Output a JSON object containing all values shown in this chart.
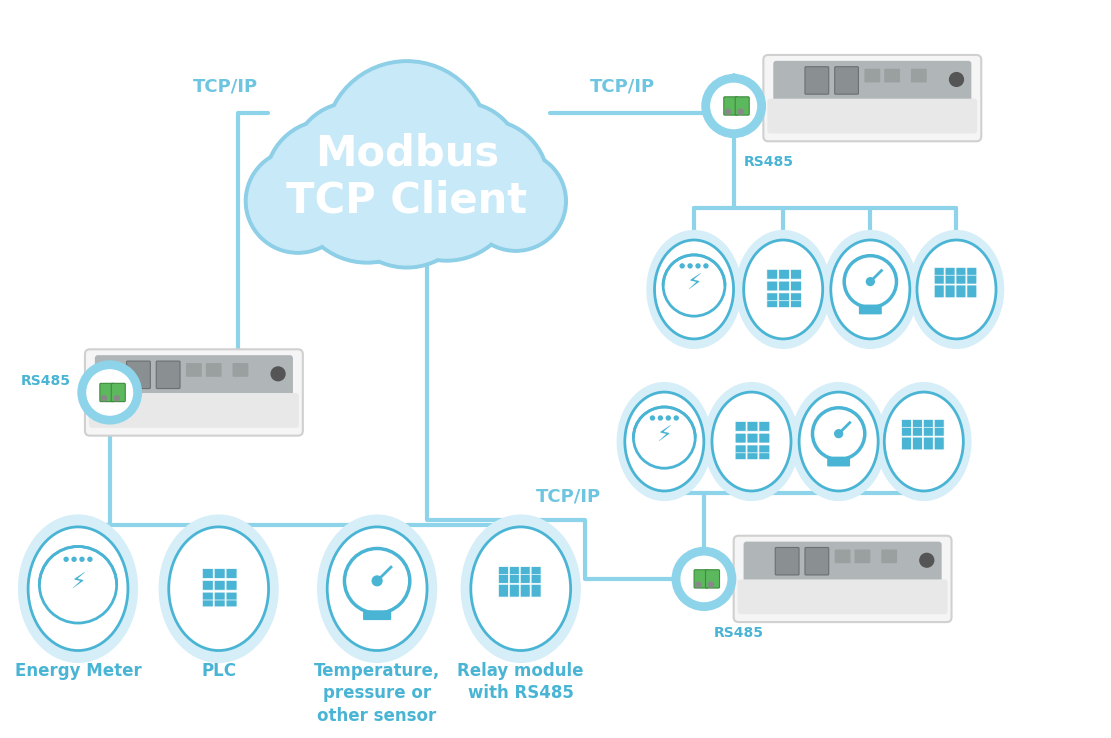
{
  "bg_color": "#ffffff",
  "cloud_fill": "#c8e9f7",
  "cloud_border": "#8ecfe8",
  "cloud_text": "Modbus\nTCP Client",
  "cloud_text_color": "#ffffff",
  "icon_color": "#4ab4d4",
  "icon_fill": "#d6eef8",
  "line_color": "#8dd4ea",
  "label_color": "#4ab4d4",
  "tcpip_color": "#6ec5e0",
  "rs485_color": "#4ab4d4",
  "device_labels_bottom": [
    "Energy Meter",
    "PLC",
    "Temperature,\npressure or\nother sensor",
    "Relay module\nwith RS485"
  ],
  "line_width": 3.0,
  "title_fontsize": 30,
  "label_fontsize": 12,
  "tcpip_fontsize": 13,
  "rs485_fontsize": 10
}
